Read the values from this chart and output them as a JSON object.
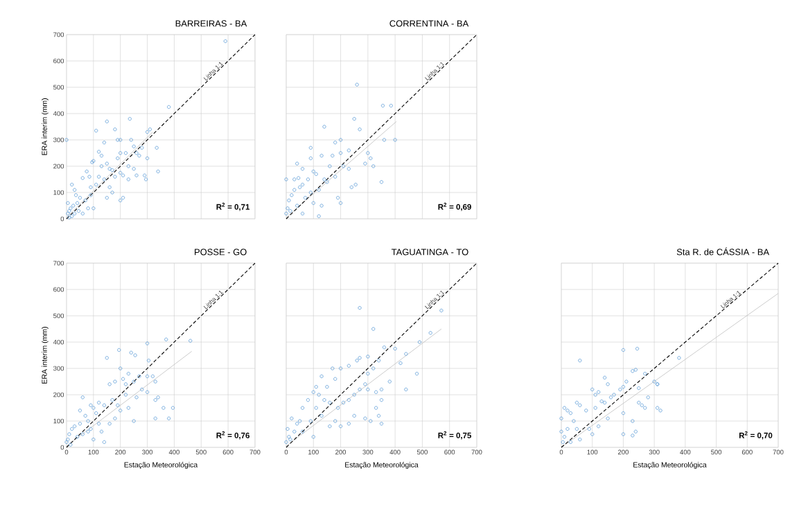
{
  "chart_data": [
    {
      "type": "scatter",
      "title": "BARREIRAS - BA",
      "ylabel": "ERA interim (mm)",
      "xlim": [
        0,
        700
      ],
      "ylim": [
        0,
        700
      ],
      "xticks": [
        0,
        100,
        200,
        300,
        400,
        500,
        600,
        700
      ],
      "yticks": [
        0,
        100,
        200,
        300,
        400,
        500,
        600,
        700
      ],
      "grid": true,
      "tick_labels": "y",
      "annotations": [
        "R$^{2}$ = 0,71"
      ],
      "series": [
        {
          "type": "scatter",
          "marker": "circle",
          "color": "#5b9bd5",
          "x": [
            0,
            590,
            380,
            235,
            150,
            180,
            110,
            300,
            310,
            335,
            340,
            295,
            290,
            200,
            190,
            140,
            95,
            100,
            85,
            60,
            75,
            130,
            150,
            160,
            170,
            180,
            200,
            210,
            230,
            250,
            260,
            260,
            270,
            220,
            250,
            240,
            200,
            120,
            130,
            110,
            120,
            140,
            170,
            160,
            210,
            200,
            90,
            70,
            50,
            40,
            30,
            20,
            45,
            60,
            30,
            20,
            10,
            5,
            15,
            25,
            35,
            5,
            10,
            80,
            100,
            90,
            150,
            190,
            230,
            280,
            300
          ],
          "values": [
            300,
            675,
            425,
            380,
            370,
            340,
            335,
            330,
            340,
            270,
            180,
            150,
            165,
            300,
            300,
            290,
            215,
            220,
            160,
            155,
            180,
            200,
            210,
            190,
            185,
            160,
            175,
            165,
            200,
            190,
            165,
            250,
            240,
            250,
            275,
            300,
            250,
            255,
            240,
            130,
            160,
            150,
            100,
            120,
            80,
            70,
            90,
            70,
            80,
            60,
            110,
            130,
            30,
            20,
            20,
            10,
            5,
            20,
            40,
            50,
            90,
            60,
            30,
            40,
            40,
            120,
            80,
            230,
            150,
            270,
            230
          ]
        },
        {
          "type": "line",
          "color": "#bfbfbf",
          "line_style": "solid",
          "x": [
            0,
            320
          ],
          "values": [
            5,
            330
          ]
        },
        {
          "type": "line",
          "name": "Linha 1:1",
          "color": "#000000",
          "line_style": "dashed",
          "x": [
            0,
            700
          ],
          "values": [
            0,
            700
          ]
        }
      ]
    },
    {
      "type": "scatter",
      "title": "CORRENTINA - BA",
      "xlim": [
        0,
        700
      ],
      "ylim": [
        0,
        700
      ],
      "xticks": [
        0,
        100,
        200,
        300,
        400,
        500,
        600,
        700
      ],
      "yticks": [
        0,
        100,
        200,
        300,
        400,
        500,
        600,
        700
      ],
      "grid": true,
      "tick_labels": false,
      "annotations": [
        "R$^{2}$ = 0,69"
      ],
      "series": [
        {
          "type": "scatter",
          "marker": "circle",
          "color": "#5b9bd5",
          "x": [
            260,
            355,
            385,
            250,
            140,
            270,
            200,
            90,
            0,
            40,
            60,
            90,
            130,
            180,
            170,
            200,
            230,
            300,
            360,
            400,
            310,
            290,
            320,
            350,
            255,
            180,
            160,
            140,
            110,
            100,
            80,
            60,
            50,
            30,
            20,
            10,
            5,
            0,
            15,
            40,
            70,
            90,
            100,
            120,
            150,
            190,
            200,
            130,
            60,
            120,
            30,
            45,
            210,
            230,
            240
          ],
          "values": [
            510,
            430,
            430,
            380,
            350,
            340,
            300,
            270,
            150,
            210,
            190,
            230,
            240,
            290,
            240,
            250,
            260,
            250,
            300,
            300,
            230,
            210,
            200,
            140,
            130,
            160,
            200,
            150,
            170,
            180,
            150,
            130,
            120,
            110,
            90,
            70,
            40,
            20,
            30,
            50,
            80,
            100,
            60,
            110,
            140,
            80,
            60,
            50,
            20,
            10,
            150,
            155,
            200,
            190,
            120
          ]
        },
        {
          "type": "line",
          "color": "#bfbfbf",
          "line_style": "solid",
          "x": [
            0,
            405
          ],
          "values": [
            5,
            370
          ]
        },
        {
          "type": "line",
          "name": "Linha 1:1",
          "color": "#000000",
          "line_style": "dashed",
          "x": [
            0,
            700
          ],
          "values": [
            0,
            700
          ]
        }
      ]
    },
    {
      "type": "scatter",
      "title": "POSSE - GO",
      "xlabel": "Estação Meteorológica",
      "ylabel": "ERA interim (mm)",
      "xlim": [
        0,
        700
      ],
      "ylim": [
        0,
        700
      ],
      "xticks": [
        0,
        100,
        200,
        300,
        400,
        500,
        600,
        700
      ],
      "yticks": [
        0,
        100,
        200,
        300,
        400,
        500,
        600,
        700
      ],
      "grid": true,
      "annotations": [
        "R$^{2}$ = 0,76"
      ],
      "series": [
        {
          "type": "scatter",
          "marker": "circle",
          "color": "#5b9bd5",
          "x": [
            460,
            370,
            300,
            305,
            240,
            255,
            195,
            150,
            200,
            160,
            180,
            210,
            220,
            230,
            250,
            270,
            300,
            320,
            330,
            340,
            330,
            360,
            395,
            380,
            330,
            250,
            190,
            170,
            140,
            120,
            110,
            100,
            90,
            60,
            50,
            70,
            80,
            50,
            30,
            20,
            10,
            0,
            5,
            15,
            40,
            60,
            90,
            130,
            100,
            140,
            160,
            180,
            200,
            220,
            260,
            280,
            300,
            230,
            120,
            80
          ],
          "values": [
            405,
            410,
            395,
            330,
            360,
            350,
            370,
            340,
            300,
            240,
            250,
            260,
            240,
            280,
            250,
            270,
            270,
            270,
            250,
            190,
            180,
            150,
            150,
            110,
            110,
            100,
            160,
            180,
            160,
            170,
            130,
            150,
            160,
            190,
            140,
            120,
            100,
            90,
            80,
            70,
            50,
            20,
            30,
            10,
            40,
            50,
            70,
            60,
            30,
            20,
            90,
            110,
            140,
            200,
            190,
            220,
            210,
            150,
            90,
            60
          ]
        },
        {
          "type": "line",
          "color": "#bfbfbf",
          "line_style": "solid",
          "x": [
            0,
            465
          ],
          "values": [
            5,
            365
          ]
        },
        {
          "type": "line",
          "name": "Linha 1:1",
          "color": "#000000",
          "line_style": "dashed",
          "x": [
            0,
            700
          ],
          "values": [
            0,
            700
          ]
        }
      ]
    },
    {
      "type": "scatter",
      "title": "TAGUATINGA - TO",
      "xlabel": "Estação Meteorológica",
      "xlim": [
        0,
        700
      ],
      "ylim": [
        0,
        700
      ],
      "xticks": [
        0,
        100,
        200,
        300,
        400,
        500,
        600,
        700
      ],
      "yticks": [
        0,
        100,
        200,
        300,
        400,
        500,
        600,
        700
      ],
      "grid": true,
      "tick_labels": "x",
      "annotations": [
        "R$^{2}$ = 0,75"
      ],
      "series": [
        {
          "type": "scatter",
          "marker": "circle",
          "color": "#5b9bd5",
          "x": [
            270,
            570,
            530,
            320,
            490,
            480,
            400,
            440,
            420,
            360,
            340,
            260,
            270,
            300,
            320,
            300,
            230,
            200,
            170,
            180,
            150,
            130,
            110,
            100,
            120,
            140,
            160,
            190,
            210,
            230,
            250,
            270,
            290,
            300,
            330,
            350,
            380,
            350,
            330,
            340,
            350,
            310,
            290,
            250,
            230,
            200,
            180,
            160,
            130,
            110,
            80,
            60,
            20,
            40,
            50,
            30,
            10,
            0,
            5,
            15,
            60,
            90,
            100,
            440
          ],
          "values": [
            530,
            520,
            435,
            450,
            400,
            280,
            375,
            355,
            320,
            380,
            330,
            330,
            340,
            345,
            300,
            280,
            310,
            300,
            300,
            260,
            230,
            270,
            230,
            210,
            200,
            180,
            170,
            150,
            170,
            180,
            200,
            220,
            240,
            220,
            210,
            220,
            250,
            180,
            150,
            120,
            90,
            100,
            110,
            120,
            90,
            80,
            100,
            80,
            120,
            150,
            180,
            150,
            110,
            90,
            100,
            60,
            40,
            20,
            70,
            30,
            60,
            100,
            40,
            220
          ]
        },
        {
          "type": "line",
          "color": "#bfbfbf",
          "line_style": "solid",
          "x": [
            0,
            570
          ],
          "values": [
            5,
            450
          ]
        },
        {
          "type": "line",
          "name": "Linha 1:1",
          "color": "#000000",
          "line_style": "dashed",
          "x": [
            0,
            700
          ],
          "values": [
            0,
            700
          ]
        }
      ]
    },
    {
      "type": "scatter",
      "title": "Sta R. de CÁSSIA - BA",
      "xlabel": "Estação Meteorológica",
      "xlim": [
        0,
        700
      ],
      "ylim": [
        0,
        700
      ],
      "xticks": [
        0,
        100,
        200,
        300,
        400,
        500,
        600,
        700
      ],
      "yticks": [
        0,
        100,
        200,
        300,
        400,
        500,
        600,
        700
      ],
      "grid": true,
      "tick_labels": "x",
      "annotations": [
        "R$^{2}$ = 0,70"
      ],
      "series": [
        {
          "type": "scatter",
          "marker": "circle",
          "color": "#5b9bd5",
          "x": [
            245,
            200,
            60,
            380,
            310,
            240,
            230,
            140,
            200,
            190,
            170,
            150,
            120,
            100,
            110,
            130,
            140,
            160,
            210,
            250,
            270,
            300,
            310,
            280,
            260,
            250,
            310,
            320,
            230,
            270,
            200,
            150,
            110,
            80,
            50,
            60,
            40,
            30,
            20,
            10,
            0,
            0,
            10,
            20,
            30,
            60,
            90,
            100,
            120,
            200,
            230,
            240,
            50,
            5
          ],
          "values": [
            375,
            370,
            330,
            340,
            240,
            295,
            290,
            265,
            230,
            220,
            200,
            240,
            210,
            220,
            200,
            175,
            170,
            190,
            250,
            225,
            280,
            250,
            240,
            190,
            160,
            170,
            150,
            140,
            100,
            150,
            130,
            110,
            150,
            140,
            170,
            160,
            100,
            130,
            140,
            150,
            110,
            60,
            40,
            70,
            20,
            30,
            70,
            50,
            80,
            50,
            45,
            60,
            70,
            20
          ]
        },
        {
          "type": "line",
          "color": "#bfbfbf",
          "line_style": "solid",
          "x": [
            0,
            700
          ],
          "values": [
            0,
            585
          ]
        },
        {
          "type": "line",
          "name": "Linha 1:1",
          "color": "#000000",
          "line_style": "dashed",
          "x": [
            0,
            700
          ],
          "values": [
            0,
            700
          ]
        }
      ]
    }
  ]
}
